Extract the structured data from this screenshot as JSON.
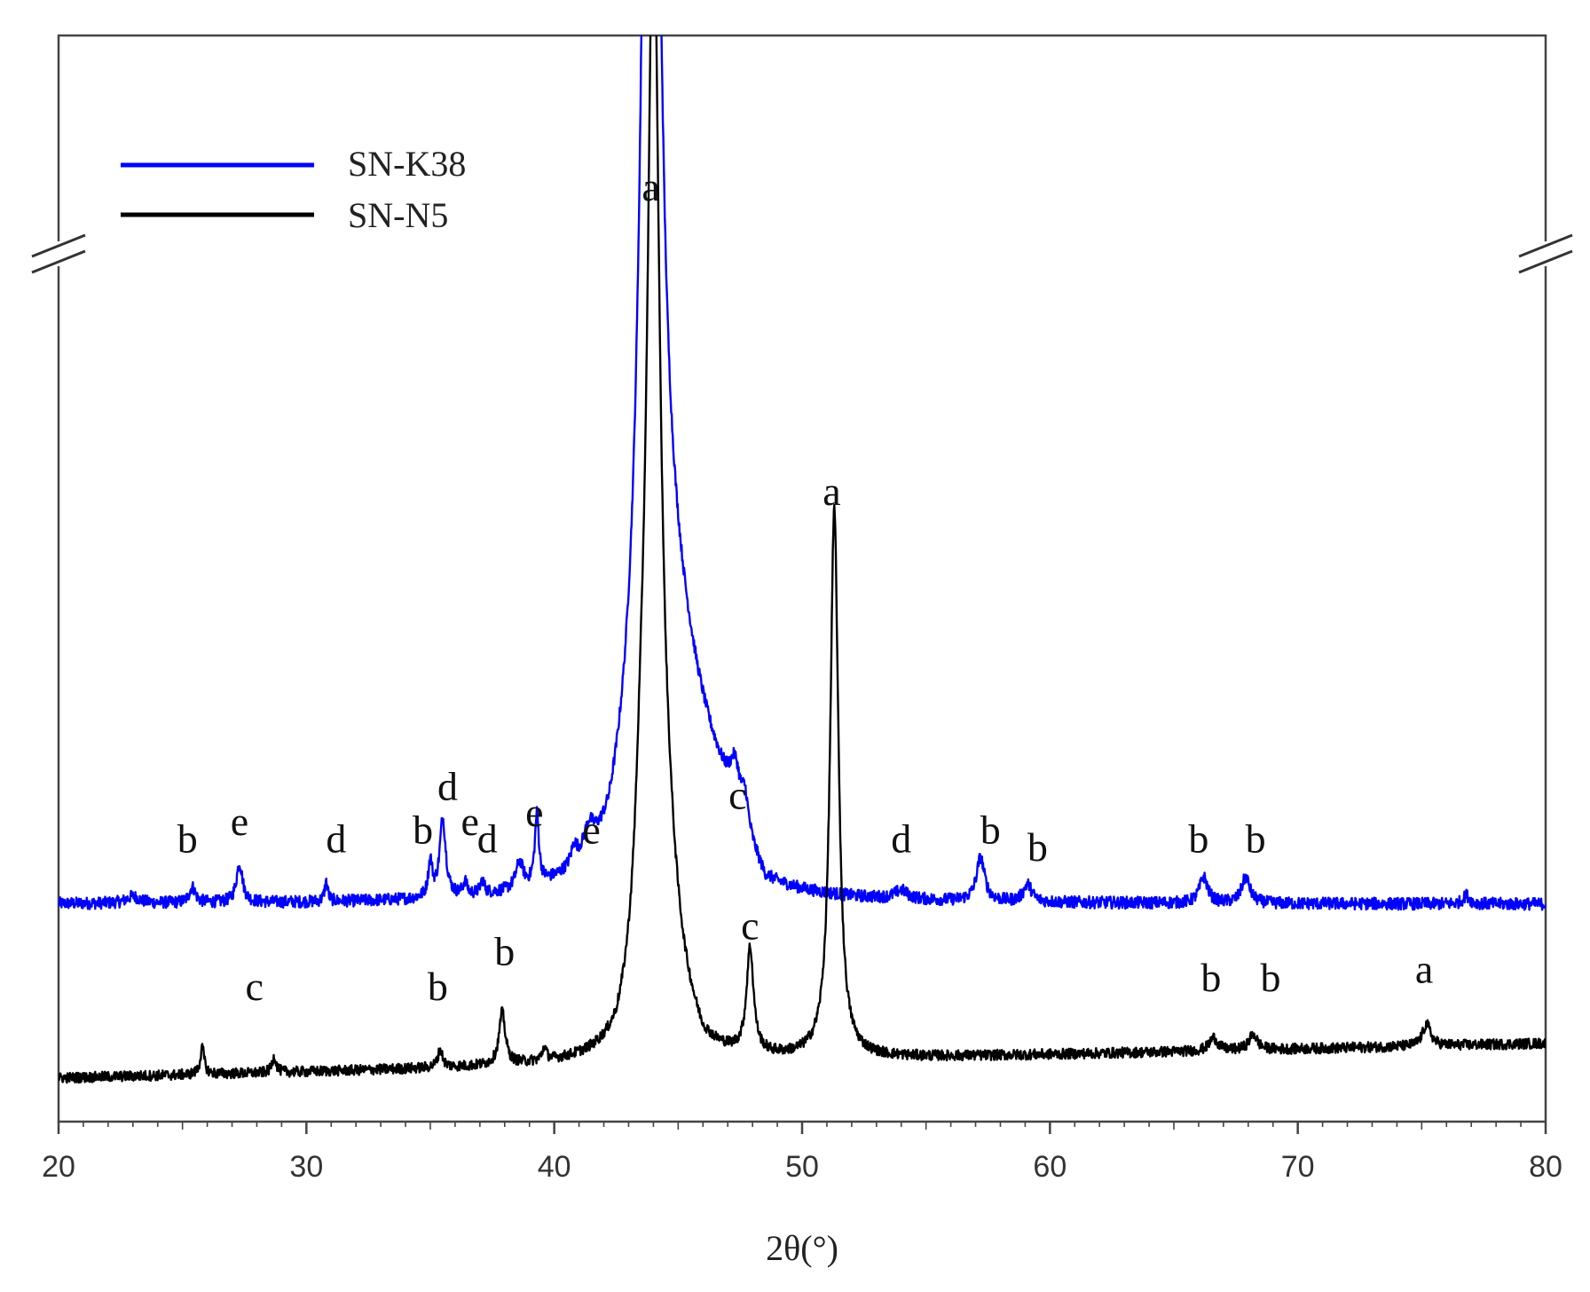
{
  "chart_data": {
    "type": "line",
    "title": "",
    "xlabel": "2θ(°)",
    "ylabel": "",
    "xlim": [
      20,
      80
    ],
    "x_ticks": [
      20,
      30,
      40,
      50,
      60,
      70,
      80
    ],
    "y_axis_break": true,
    "legend_position": "top-left",
    "grid": false,
    "series": [
      {
        "name": "SN-K38",
        "color": "#0000ff",
        "baseline_intensity": 0.25,
        "noise": 0.007,
        "peaks": [
          {
            "x": 23.0,
            "height": 0.008,
            "width": 0.3
          },
          {
            "x": 25.4,
            "height": 0.018,
            "width": 0.15
          },
          {
            "x": 27.3,
            "height": 0.045,
            "width": 0.15
          },
          {
            "x": 30.8,
            "height": 0.022,
            "width": 0.08
          },
          {
            "x": 35.0,
            "height": 0.04,
            "width": 0.1
          },
          {
            "x": 35.5,
            "height": 0.09,
            "width": 0.15
          },
          {
            "x": 36.4,
            "height": 0.015,
            "width": 0.1
          },
          {
            "x": 37.1,
            "height": 0.015,
            "width": 0.1
          },
          {
            "x": 38.6,
            "height": 0.03,
            "width": 0.18
          },
          {
            "x": 39.3,
            "height": 0.08,
            "width": 0.1
          },
          {
            "x": 40.8,
            "height": 0.02,
            "width": 0.15
          },
          {
            "x": 41.4,
            "height": 0.03,
            "width": 0.25
          },
          {
            "x": 43.9,
            "height": 1.8,
            "width": 0.35
          },
          {
            "x": 44.6,
            "height": 0.2,
            "width": 1.4
          },
          {
            "x": 47.3,
            "height": 0.05,
            "width": 0.25
          },
          {
            "x": 47.7,
            "height": 0.035,
            "width": 0.15
          },
          {
            "x": 54.0,
            "height": 0.01,
            "width": 0.3
          },
          {
            "x": 57.2,
            "height": 0.05,
            "width": 0.2
          },
          {
            "x": 59.1,
            "height": 0.02,
            "width": 0.2
          },
          {
            "x": 66.2,
            "height": 0.03,
            "width": 0.2
          },
          {
            "x": 67.9,
            "height": 0.03,
            "width": 0.2
          },
          {
            "x": 76.8,
            "height": 0.01,
            "width": 0.15
          }
        ],
        "shoulder": {
          "from": 42.2,
          "to": 48.5,
          "height": 0.1
        }
      },
      {
        "name": "SN-N5",
        "color": "#000000",
        "baseline_intensity": 0.05,
        "baseline_end_intensity": 0.09,
        "noise": 0.006,
        "peaks": [
          {
            "x": 25.8,
            "height": 0.03,
            "width": 0.1
          },
          {
            "x": 28.7,
            "height": 0.018,
            "width": 0.1
          },
          {
            "x": 35.4,
            "height": 0.02,
            "width": 0.12
          },
          {
            "x": 37.9,
            "height": 0.06,
            "width": 0.15
          },
          {
            "x": 39.6,
            "height": 0.015,
            "width": 0.1
          },
          {
            "x": 43.5,
            "height": 0.12,
            "width": 0.3
          },
          {
            "x": 44.0,
            "height": 1.2,
            "width": 0.3
          },
          {
            "x": 44.5,
            "height": 0.12,
            "width": 0.6
          },
          {
            "x": 47.9,
            "height": 0.12,
            "width": 0.17
          },
          {
            "x": 51.3,
            "height": 0.63,
            "width": 0.2
          },
          {
            "x": 66.6,
            "height": 0.015,
            "width": 0.2
          },
          {
            "x": 68.2,
            "height": 0.018,
            "width": 0.2
          },
          {
            "x": 75.2,
            "height": 0.025,
            "width": 0.2
          }
        ],
        "shoulder": {
          "from": 42.5,
          "to": 46.0,
          "height": 0.04
        }
      }
    ],
    "peak_annotations": [
      {
        "label": "a",
        "x": 43.9,
        "y": 1.06
      },
      {
        "label": "b",
        "x": 25.2,
        "y": 0.31
      },
      {
        "label": "e",
        "x": 27.3,
        "y": 0.33
      },
      {
        "label": "d",
        "x": 31.2,
        "y": 0.31
      },
      {
        "label": "b",
        "x": 34.7,
        "y": 0.32
      },
      {
        "label": "d",
        "x": 35.7,
        "y": 0.37
      },
      {
        "label": "e",
        "x": 36.6,
        "y": 0.33
      },
      {
        "label": "d",
        "x": 37.3,
        "y": 0.31
      },
      {
        "label": "e",
        "x": 39.2,
        "y": 0.34
      },
      {
        "label": "e",
        "x": 41.5,
        "y": 0.32
      },
      {
        "label": "c",
        "x": 47.4,
        "y": 0.36
      },
      {
        "label": "d",
        "x": 54.0,
        "y": 0.31
      },
      {
        "label": "b",
        "x": 57.6,
        "y": 0.32
      },
      {
        "label": "b",
        "x": 59.5,
        "y": 0.3
      },
      {
        "label": "b",
        "x": 66.0,
        "y": 0.31
      },
      {
        "label": "b",
        "x": 68.3,
        "y": 0.31
      },
      {
        "label": "a",
        "x": 51.2,
        "y": 0.71
      },
      {
        "label": "c",
        "x": 27.9,
        "y": 0.14
      },
      {
        "label": "b",
        "x": 35.3,
        "y": 0.14
      },
      {
        "label": "b",
        "x": 38.0,
        "y": 0.18
      },
      {
        "label": "c",
        "x": 47.9,
        "y": 0.21
      },
      {
        "label": "b",
        "x": 66.5,
        "y": 0.15
      },
      {
        "label": "b",
        "x": 68.9,
        "y": 0.15
      },
      {
        "label": "a",
        "x": 75.1,
        "y": 0.16
      }
    ]
  }
}
